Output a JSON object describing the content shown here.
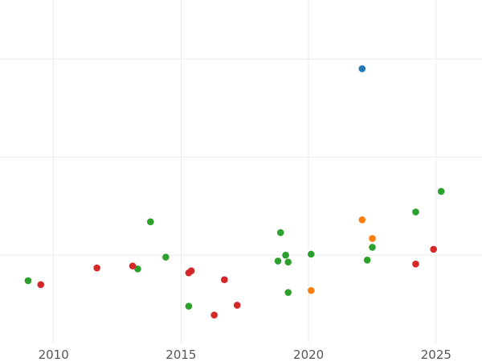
{
  "chart_data": {
    "type": "scatter",
    "title": "",
    "xlabel": "",
    "ylabel": "",
    "xlim": [
      2007.9,
      2026.8
    ],
    "ylim": [
      0,
      3.5
    ],
    "grid": true,
    "x_ticks": [
      2010,
      2015,
      2020,
      2025
    ],
    "x_tick_labels": [
      "2010",
      "2015",
      "2020",
      "2025"
    ],
    "y_gridlines": [
      0.9,
      1.9,
      2.9
    ],
    "y_tick_labels_visible": false,
    "colors": {
      "blue": "#1f77b4",
      "orange": "#ff7f0e",
      "green": "#2ca02c",
      "red": "#d62728"
    },
    "series": [
      {
        "color": "#1f77b4",
        "points": [
          [
            2022.1,
            2.8
          ]
        ]
      },
      {
        "color": "#ff7f0e",
        "points": [
          [
            2022.1,
            1.26
          ],
          [
            2022.5,
            1.07
          ],
          [
            2020.1,
            0.54
          ]
        ]
      },
      {
        "color": "#2ca02c",
        "points": [
          [
            2009.0,
            0.64
          ],
          [
            2013.3,
            0.76
          ],
          [
            2013.8,
            1.24
          ],
          [
            2014.4,
            0.88
          ],
          [
            2015.3,
            0.38
          ],
          [
            2018.8,
            0.84
          ],
          [
            2018.9,
            1.13
          ],
          [
            2019.1,
            0.9
          ],
          [
            2019.2,
            0.83
          ],
          [
            2019.2,
            0.52
          ],
          [
            2020.1,
            0.91
          ],
          [
            2022.3,
            0.85
          ],
          [
            2022.5,
            0.98
          ],
          [
            2024.2,
            1.34
          ],
          [
            2025.2,
            1.55
          ]
        ]
      },
      {
        "color": "#d62728",
        "points": [
          [
            2009.5,
            0.6
          ],
          [
            2011.7,
            0.77
          ],
          [
            2013.1,
            0.79
          ],
          [
            2015.3,
            0.72
          ],
          [
            2015.4,
            0.74
          ],
          [
            2016.3,
            0.29
          ],
          [
            2016.7,
            0.65
          ],
          [
            2017.2,
            0.39
          ],
          [
            2024.2,
            0.81
          ],
          [
            2024.9,
            0.96
          ]
        ]
      }
    ]
  }
}
